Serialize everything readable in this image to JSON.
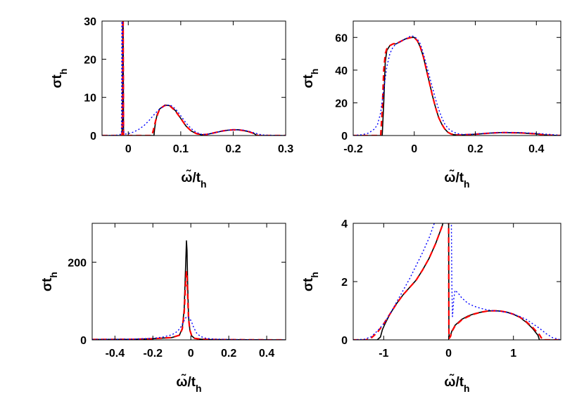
{
  "chart_data": [
    {
      "type": "line",
      "xlabel": "ω̃/t_h",
      "ylabel": "σt_h",
      "xlim": [
        -0.05,
        0.3
      ],
      "ylim": [
        0,
        30
      ],
      "xticks": [
        0,
        0.1,
        0.2,
        0.3
      ],
      "yticks": [
        0,
        10,
        20,
        30
      ],
      "xtick_labels": [
        "0",
        "0.1",
        "0.2",
        "0.3"
      ],
      "ytick_labels": [
        "0",
        "10",
        "20",
        "30"
      ],
      "series": [
        {
          "style": "solid",
          "color": "#000000",
          "x": [
            -0.05,
            -0.02,
            -0.012,
            -0.011,
            -0.0105,
            -0.01,
            -0.009,
            0.049,
            0.05,
            0.052,
            0.055,
            0.06,
            0.07,
            0.08,
            0.09,
            0.1,
            0.11,
            0.12,
            0.13,
            0.14,
            0.15,
            0.16,
            0.17,
            0.18,
            0.19,
            0.2,
            0.21,
            0.22,
            0.23,
            0.24,
            0.245,
            0.3
          ],
          "y": [
            0,
            0,
            0,
            5,
            40,
            40,
            0,
            0,
            1.5,
            3.5,
            5.5,
            7,
            8,
            7.8,
            6.5,
            4.5,
            2.5,
            1.2,
            0.5,
            0.2,
            0.3,
            0.6,
            0.9,
            1.2,
            1.4,
            1.5,
            1.5,
            1.3,
            1.0,
            0.5,
            0,
            0
          ]
        },
        {
          "style": "dashed",
          "color": "#ff0000",
          "x": [
            -0.05,
            -0.02,
            -0.012,
            -0.011,
            -0.0105,
            -0.01,
            -0.009,
            0.045,
            0.048,
            0.052,
            0.056,
            0.06,
            0.07,
            0.08,
            0.09,
            0.1,
            0.11,
            0.12,
            0.13,
            0.14,
            0.15,
            0.16,
            0.17,
            0.18,
            0.19,
            0.2,
            0.21,
            0.22,
            0.23,
            0.24,
            0.247,
            0.3
          ],
          "y": [
            0,
            0,
            0,
            5,
            40,
            40,
            0,
            0,
            1.5,
            3.8,
            5.6,
            7,
            7.9,
            7.7,
            6.4,
            4.5,
            2.5,
            1.2,
            0.5,
            0.2,
            0.3,
            0.6,
            0.9,
            1.2,
            1.4,
            1.5,
            1.5,
            1.3,
            1.0,
            0.5,
            0,
            0
          ]
        },
        {
          "style": "dotted",
          "color": "#0000ff",
          "x": [
            -0.05,
            -0.03,
            -0.02,
            -0.013,
            -0.012,
            -0.011,
            -0.01,
            -0.008,
            -0.005,
            0.0,
            0.01,
            0.02,
            0.03,
            0.04,
            0.05,
            0.06,
            0.07,
            0.08,
            0.09,
            0.1,
            0.11,
            0.12,
            0.13,
            0.14,
            0.15,
            0.16,
            0.17,
            0.18,
            0.19,
            0.2,
            0.21,
            0.22,
            0.23,
            0.24,
            0.25,
            0.26,
            0.3
          ],
          "y": [
            0,
            0.05,
            0.1,
            0.4,
            40,
            40,
            2,
            0.5,
            0.4,
            0.5,
            0.9,
            1.6,
            2.6,
            4.0,
            5.6,
            7.0,
            7.9,
            8.0,
            7.0,
            5.2,
            3.3,
            1.8,
            0.8,
            0.3,
            0.3,
            0.6,
            0.9,
            1.2,
            1.4,
            1.5,
            1.5,
            1.4,
            1.1,
            0.7,
            0.3,
            0.1,
            0
          ]
        }
      ]
    },
    {
      "type": "line",
      "xlabel": "ω̃/t_h",
      "ylabel": "σt_h",
      "xlim": [
        -0.2,
        0.48
      ],
      "ylim": [
        0,
        70
      ],
      "xticks": [
        -0.2,
        0,
        0.2,
        0.4
      ],
      "yticks": [
        0,
        20,
        40,
        60
      ],
      "xtick_labels": [
        "-0.2",
        "0",
        "0.2",
        "0.4"
      ],
      "ytick_labels": [
        "0",
        "20",
        "40",
        "60"
      ],
      "series": [
        {
          "style": "solid",
          "color": "#000000",
          "x": [
            -0.2,
            -0.105,
            -0.1,
            -0.095,
            -0.09,
            -0.08,
            -0.07,
            -0.06,
            -0.05,
            -0.04,
            -0.03,
            -0.02,
            -0.01,
            0.0,
            0.01,
            0.02,
            0.03,
            0.04,
            0.05,
            0.06,
            0.07,
            0.08,
            0.09,
            0.1,
            0.11,
            0.12,
            0.13,
            0.15,
            0.2,
            0.25,
            0.28,
            0.3,
            0.35,
            0.4,
            0.43,
            0.48
          ],
          "y": [
            0,
            0,
            20,
            45,
            52,
            55,
            56,
            56,
            57,
            58,
            59,
            59.5,
            60,
            60,
            58,
            54,
            48,
            40,
            32,
            24,
            17,
            11,
            7,
            4,
            2,
            1,
            0.5,
            0.3,
            0.8,
            1.5,
            1.8,
            1.8,
            1.6,
            1.0,
            0.3,
            0
          ]
        },
        {
          "style": "dashed",
          "color": "#ff0000",
          "x": [
            -0.2,
            -0.11,
            -0.105,
            -0.1,
            -0.095,
            -0.09,
            -0.08,
            -0.07,
            -0.06,
            -0.05,
            -0.04,
            -0.03,
            -0.02,
            -0.01,
            0.0,
            0.01,
            0.02,
            0.03,
            0.04,
            0.05,
            0.06,
            0.07,
            0.08,
            0.09,
            0.1,
            0.11,
            0.12,
            0.13,
            0.15,
            0.2,
            0.25,
            0.28,
            0.3,
            0.35,
            0.4,
            0.43,
            0.48
          ],
          "y": [
            0,
            0,
            15,
            40,
            50,
            53,
            55,
            56,
            56.5,
            57,
            58,
            59,
            59.5,
            60,
            60,
            58,
            54,
            48,
            40,
            32,
            24,
            17,
            11,
            7,
            4,
            2,
            1,
            0.5,
            0.3,
            0.8,
            1.5,
            1.8,
            1.8,
            1.6,
            1.0,
            0.3,
            0
          ]
        },
        {
          "style": "dotted",
          "color": "#0000ff",
          "x": [
            -0.2,
            -0.17,
            -0.15,
            -0.13,
            -0.12,
            -0.11,
            -0.1,
            -0.09,
            -0.08,
            -0.07,
            -0.06,
            -0.05,
            -0.04,
            -0.03,
            -0.02,
            -0.01,
            0.0,
            0.01,
            0.02,
            0.03,
            0.04,
            0.05,
            0.06,
            0.07,
            0.08,
            0.09,
            0.1,
            0.11,
            0.12,
            0.13,
            0.14,
            0.16,
            0.2,
            0.25,
            0.3,
            0.35,
            0.4,
            0.45,
            0.48
          ],
          "y": [
            0,
            0.5,
            1.5,
            4,
            7,
            14,
            28,
            42,
            50,
            54,
            56,
            57,
            58,
            59,
            60,
            61,
            60.5,
            59,
            56,
            50,
            43,
            36,
            29,
            22,
            16,
            11,
            7,
            4.5,
            3,
            2,
            1.2,
            0.6,
            0.9,
            1.6,
            1.9,
            1.8,
            1.3,
            0.6,
            0.1
          ]
        }
      ]
    },
    {
      "type": "line",
      "xlabel": "ω̃/t_h",
      "ylabel": "σt_h",
      "xlim": [
        -0.52,
        0.5
      ],
      "ylim": [
        0,
        300
      ],
      "xticks": [
        -0.4,
        -0.2,
        0,
        0.2,
        0.4
      ],
      "yticks": [
        0,
        200
      ],
      "xtick_labels": [
        "-0.4",
        "-0.2",
        "0",
        "0.2",
        "0.4"
      ],
      "ytick_labels": [
        "0",
        "200"
      ],
      "series": [
        {
          "style": "solid",
          "color": "#000000",
          "x": [
            -0.52,
            -0.3,
            -0.2,
            -0.1,
            -0.06,
            -0.045,
            -0.035,
            -0.028,
            -0.023,
            -0.02,
            -0.017,
            -0.012,
            -0.005,
            0.005,
            0.02,
            0.05,
            0.1,
            0.2,
            0.3,
            0.5
          ],
          "y": [
            1,
            1.5,
            3,
            6,
            12,
            30,
            80,
            180,
            255,
            230,
            150,
            60,
            25,
            10,
            4,
            2,
            1,
            0.5,
            0.3,
            0
          ]
        },
        {
          "style": "dashed",
          "color": "#ff0000",
          "x": [
            -0.52,
            -0.3,
            -0.2,
            -0.1,
            -0.06,
            -0.045,
            -0.035,
            -0.028,
            -0.023,
            -0.02,
            -0.017,
            -0.012,
            -0.005,
            0.005,
            0.02,
            0.05,
            0.1,
            0.2,
            0.3,
            0.5
          ],
          "y": [
            1,
            1.5,
            3,
            6,
            12,
            28,
            70,
            140,
            175,
            165,
            120,
            55,
            25,
            10,
            4,
            2,
            1,
            0.5,
            0.3,
            0
          ]
        },
        {
          "style": "dotted",
          "color": "#0000ff",
          "x": [
            -0.52,
            -0.3,
            -0.2,
            -0.15,
            -0.1,
            -0.07,
            -0.05,
            -0.035,
            -0.025,
            -0.015,
            -0.005,
            0.005,
            0.015,
            0.03,
            0.05,
            0.08,
            0.12,
            0.2,
            0.3,
            0.5
          ],
          "y": [
            1,
            2,
            4,
            7,
            13,
            22,
            35,
            50,
            58,
            60,
            55,
            45,
            32,
            18,
            9,
            4,
            2,
            1,
            0.5,
            0
          ]
        }
      ]
    },
    {
      "type": "line",
      "xlabel": "ω̃/t_h",
      "ylabel": "σt_h",
      "xlim": [
        -1.47,
        1.73
      ],
      "ylim": [
        0,
        4
      ],
      "xticks": [
        -1,
        0,
        1
      ],
      "yticks": [
        0,
        2,
        4
      ],
      "xtick_labels": [
        "-1",
        "0",
        "1"
      ],
      "ytick_labels": [
        "0",
        "2",
        "4"
      ],
      "series": [
        {
          "style": "solid",
          "color": "#000000",
          "x": [
            -1.47,
            -1.1,
            -1.05,
            -1.02,
            -0.98,
            -0.9,
            -0.8,
            -0.7,
            -0.6,
            -0.5,
            -0.4,
            -0.3,
            -0.2,
            -0.1,
            -0.05,
            -0.02,
            -0.01,
            0.0,
            0.005,
            0.01,
            0.03,
            0.05,
            0.1,
            0.2,
            0.3,
            0.4,
            0.5,
            0.6,
            0.7,
            0.8,
            0.9,
            1.0,
            1.1,
            1.2,
            1.3,
            1.38,
            1.4,
            1.73
          ],
          "y": [
            0,
            0,
            0.1,
            0.35,
            0.55,
            0.9,
            1.25,
            1.55,
            1.8,
            2.05,
            2.4,
            2.8,
            3.3,
            3.9,
            4.3,
            4.8,
            5,
            5,
            0.3,
            0.05,
            0.15,
            0.3,
            0.5,
            0.7,
            0.82,
            0.9,
            0.95,
            0.99,
            1.0,
            0.99,
            0.95,
            0.88,
            0.77,
            0.6,
            0.38,
            0.15,
            0,
            0
          ]
        },
        {
          "style": "dashed",
          "color": "#ff0000",
          "x": [
            -1.47,
            -1.28,
            -1.2,
            -1.1,
            -1.0,
            -0.9,
            -0.8,
            -0.7,
            -0.6,
            -0.5,
            -0.4,
            -0.3,
            -0.2,
            -0.1,
            -0.05,
            -0.02,
            -0.01,
            0.0,
            0.005,
            0.01,
            0.03,
            0.05,
            0.1,
            0.2,
            0.3,
            0.4,
            0.5,
            0.6,
            0.7,
            0.8,
            0.9,
            1.0,
            1.1,
            1.2,
            1.3,
            1.4,
            1.45,
            1.73
          ],
          "y": [
            0,
            0,
            0.05,
            0.25,
            0.55,
            0.9,
            1.25,
            1.55,
            1.8,
            2.05,
            2.4,
            2.8,
            3.3,
            3.9,
            4.3,
            4.8,
            5,
            5,
            0.3,
            0.05,
            0.12,
            0.28,
            0.48,
            0.68,
            0.8,
            0.89,
            0.95,
            0.99,
            1.0,
            0.99,
            0.95,
            0.88,
            0.78,
            0.62,
            0.42,
            0.18,
            0,
            0
          ]
        },
        {
          "style": "dotted",
          "color": "#0000ff",
          "x": [
            -1.47,
            -1.3,
            -1.2,
            -1.1,
            -1.0,
            -0.9,
            -0.8,
            -0.7,
            -0.6,
            -0.5,
            -0.4,
            -0.3,
            -0.22,
            -0.17,
            -0.14,
            0.04,
            0.05,
            0.06,
            0.08,
            0.1,
            0.15,
            0.2,
            0.3,
            0.4,
            0.5,
            0.6,
            0.7,
            0.8,
            0.9,
            1.0,
            1.1,
            1.2,
            1.3,
            1.4,
            1.5,
            1.6,
            1.73
          ],
          "y": [
            0,
            0.02,
            0.1,
            0.3,
            0.55,
            0.9,
            1.3,
            1.7,
            2.1,
            2.55,
            3.0,
            3.5,
            4.0,
            4.5,
            5,
            5,
            2,
            0.8,
            1.4,
            1.7,
            1.6,
            1.45,
            1.25,
            1.15,
            1.08,
            1.03,
            1.0,
            0.98,
            0.94,
            0.88,
            0.8,
            0.7,
            0.55,
            0.4,
            0.22,
            0.08,
            0
          ]
        }
      ]
    }
  ]
}
